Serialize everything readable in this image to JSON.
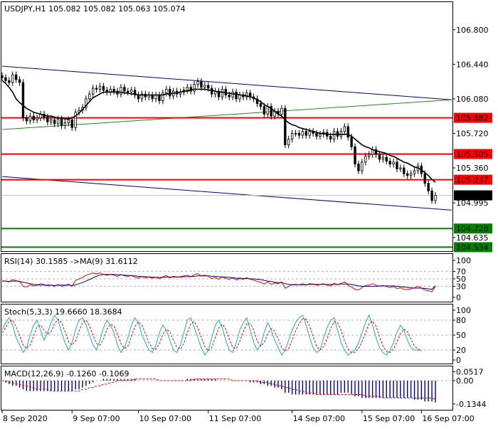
{
  "chart_data": {
    "type": "candlestick",
    "symbol_header": "USDJPY,H1  105.082 105.082 105.063 105.074",
    "price_panel": {
      "ylim": [
        104.5,
        107.08
      ],
      "y_tick_labels": [
        "106.800",
        "106.440",
        "106.080",
        "105.720",
        "105.360",
        "104.995",
        "104.635"
      ],
      "y_tick_values": [
        106.8,
        106.44,
        106.08,
        105.72,
        105.36,
        104.995,
        104.635
      ],
      "horizontal_levels": [
        {
          "label": "105.882",
          "value": 105.882,
          "color": "#ff0000",
          "label_bg": "#ff0000"
        },
        {
          "label": "105.505",
          "value": 105.505,
          "color": "#ff0000",
          "label_bg": "#ff0000"
        },
        {
          "label": "105.237",
          "value": 105.237,
          "color": "#ff0000",
          "label_bg": "#ff0000"
        },
        {
          "label": "104.728",
          "value": 104.728,
          "color": "#008000",
          "label_bg": "#008000"
        },
        {
          "label": "104.534",
          "value": 104.534,
          "color": "#008000",
          "label_bg": "#008000"
        }
      ],
      "current_price": {
        "label": "105.074",
        "value": 105.074,
        "label_bg": "#000000"
      },
      "trendlines": [
        {
          "color": "#00008b",
          "from": [
            0,
            106.42
          ],
          "to": [
            125,
            106.07
          ]
        },
        {
          "color": "#00008b",
          "from": [
            0,
            105.27
          ],
          "to": [
            125,
            104.92
          ]
        },
        {
          "color": "#228b22",
          "from": [
            0,
            105.76
          ],
          "to": [
            125,
            106.07
          ]
        }
      ],
      "close_series": [
        106.3,
        106.27,
        106.25,
        106.33,
        106.28,
        106.25,
        105.88,
        105.85,
        105.9,
        105.86,
        105.88,
        105.92,
        105.89,
        105.84,
        105.86,
        105.82,
        105.87,
        105.8,
        105.83,
        105.86,
        105.78,
        105.94,
        105.96,
        105.99,
        106.08,
        106.13,
        106.19,
        106.18,
        106.21,
        106.17,
        106.15,
        106.18,
        106.16,
        106.13,
        106.2,
        106.16,
        106.15,
        106.17,
        106.12,
        106.08,
        106.13,
        106.1,
        106.12,
        106.08,
        106.12,
        106.06,
        106.14,
        106.18,
        106.11,
        106.16,
        106.13,
        106.15,
        106.17,
        106.2,
        106.16,
        106.23,
        106.26,
        106.2,
        106.22,
        106.19,
        106.13,
        106.16,
        106.1,
        106.18,
        106.12,
        106.1,
        106.15,
        106.08,
        106.12,
        106.1,
        106.14,
        106.1,
        106.08,
        106.03,
        106.0,
        105.92,
        106.0,
        105.9,
        105.95,
        105.92,
        105.98,
        105.6,
        105.66,
        105.72,
        105.72,
        105.7,
        105.74,
        105.7,
        105.74,
        105.72,
        105.69,
        105.71,
        105.73,
        105.69,
        105.66,
        105.74,
        105.69,
        105.74,
        105.79,
        105.68,
        105.58,
        105.4,
        105.33,
        105.42,
        105.48,
        105.5,
        105.55,
        105.5,
        105.45,
        105.47,
        105.43,
        105.4,
        105.42,
        105.35,
        105.36,
        105.3,
        105.28,
        105.3,
        105.33,
        105.38,
        105.3,
        105.2,
        105.12,
        105.02,
        105.074
      ],
      "ma_series": [
        106.27,
        106.24,
        106.2,
        106.15,
        106.08,
        106.04,
        106.01,
        105.98,
        105.96,
        105.94,
        105.93,
        105.92,
        105.91,
        105.9,
        105.9,
        105.89,
        105.88,
        105.88,
        105.87,
        105.87,
        105.88,
        105.9,
        105.93,
        105.97,
        106.01,
        106.05,
        106.09,
        106.11,
        106.13,
        106.15,
        106.15,
        106.15,
        106.15,
        106.15,
        106.15,
        106.14,
        106.14,
        106.13,
        106.13,
        106.12,
        106.12,
        106.12,
        106.12,
        106.12,
        106.12,
        106.12,
        106.12,
        106.13,
        106.13,
        106.14,
        106.14,
        106.15,
        106.16,
        106.16,
        106.17,
        106.18,
        106.18,
        106.18,
        106.18,
        106.17,
        106.17,
        106.16,
        106.15,
        106.15,
        106.14,
        106.14,
        106.13,
        106.13,
        106.12,
        106.12,
        106.11,
        106.1,
        106.09,
        106.07,
        106.05,
        106.02,
        106.0,
        105.98,
        105.95,
        105.92,
        105.9,
        105.86,
        105.83,
        105.81,
        105.8,
        105.78,
        105.77,
        105.76,
        105.75,
        105.74,
        105.73,
        105.72,
        105.72,
        105.71,
        105.71,
        105.71,
        105.71,
        105.71,
        105.71,
        105.71,
        105.69,
        105.66,
        105.63,
        105.6,
        105.58,
        105.57,
        105.55,
        105.54,
        105.53,
        105.52,
        105.51,
        105.49,
        105.48,
        105.46,
        105.44,
        105.42,
        105.41,
        105.39,
        105.37,
        105.36,
        105.34,
        105.31,
        105.28,
        105.24,
        105.21
      ]
    },
    "rsi_panel": {
      "header": "RSI(14) 30.1585  ->MA(9) 31.6112",
      "ylim": [
        0,
        100
      ],
      "y_tick_labels": [
        "100",
        "70",
        "50",
        "30",
        "0"
      ],
      "y_tick_values": [
        100,
        70,
        50,
        30,
        0
      ],
      "rsi_series": [
        45,
        44,
        42,
        48,
        45,
        43,
        30,
        28,
        34,
        31,
        33,
        37,
        35,
        31,
        33,
        30,
        35,
        30,
        32,
        36,
        30,
        46,
        50,
        54,
        60,
        63,
        66,
        64,
        66,
        62,
        60,
        62,
        60,
        57,
        62,
        58,
        57,
        59,
        55,
        52,
        56,
        53,
        55,
        52,
        55,
        50,
        56,
        59,
        53,
        57,
        55,
        56,
        58,
        60,
        56,
        62,
        64,
        58,
        60,
        57,
        51,
        54,
        49,
        56,
        51,
        49,
        53,
        47,
        51,
        49,
        53,
        49,
        47,
        43,
        41,
        36,
        42,
        35,
        39,
        37,
        42,
        25,
        30,
        35,
        35,
        34,
        37,
        34,
        37,
        36,
        33,
        35,
        37,
        33,
        31,
        38,
        34,
        38,
        42,
        33,
        28,
        22,
        20,
        27,
        32,
        33,
        37,
        33,
        30,
        32,
        29,
        27,
        29,
        24,
        26,
        22,
        21,
        23,
        26,
        30,
        25,
        20,
        18,
        15,
        30
      ],
      "ma_series": [
        44,
        44,
        43,
        44,
        44,
        43,
        41,
        39,
        37,
        35,
        34,
        33,
        33,
        33,
        33,
        32,
        33,
        33,
        33,
        33,
        32,
        34,
        37,
        40,
        44,
        48,
        53,
        57,
        60,
        62,
        62,
        62,
        62,
        61,
        61,
        60,
        59,
        59,
        58,
        57,
        56,
        56,
        55,
        55,
        54,
        54,
        54,
        55,
        55,
        55,
        55,
        55,
        56,
        56,
        56,
        57,
        58,
        58,
        58,
        58,
        57,
        57,
        56,
        55,
        55,
        54,
        53,
        52,
        52,
        51,
        51,
        50,
        50,
        49,
        48,
        46,
        44,
        43,
        41,
        40,
        40,
        37,
        35,
        34,
        34,
        34,
        34,
        34,
        35,
        35,
        35,
        35,
        35,
        35,
        35,
        35,
        35,
        36,
        36,
        36,
        35,
        33,
        31,
        30,
        30,
        30,
        30,
        30,
        31,
        31,
        31,
        31,
        31,
        30,
        29,
        28,
        27,
        26,
        25,
        25,
        25,
        24,
        23,
        22,
        31.6
      ]
    },
    "stoch_panel": {
      "header": "Stoch(5,3,3) 19.6660 18.3684",
      "ylim": [
        0,
        100
      ],
      "y_tick_labels": [
        "100",
        "80",
        "50",
        "20",
        "0"
      ],
      "y_tick_values": [
        100,
        80,
        50,
        20,
        0
      ],
      "k_series": [
        60,
        75,
        85,
        70,
        45,
        30,
        15,
        25,
        50,
        70,
        80,
        60,
        40,
        55,
        75,
        90,
        80,
        55,
        35,
        20,
        35,
        60,
        80,
        85,
        70,
        50,
        30,
        20,
        40,
        65,
        80,
        70,
        55,
        30,
        15,
        25,
        45,
        70,
        85,
        75,
        50,
        35,
        20,
        15,
        30,
        55,
        70,
        60,
        40,
        20,
        15,
        30,
        55,
        80,
        85,
        65,
        45,
        25,
        10,
        20,
        45,
        70,
        80,
        65,
        40,
        20,
        15,
        35,
        60,
        75,
        85,
        60,
        35,
        20,
        30,
        55,
        75,
        60,
        40,
        25,
        10,
        20,
        40,
        60,
        75,
        85,
        90,
        70,
        45,
        25,
        15,
        20,
        45,
        65,
        80,
        85,
        60,
        35,
        20,
        10,
        15,
        20,
        35,
        55,
        75,
        90,
        70,
        45,
        25,
        15,
        10,
        20,
        35,
        55,
        70,
        60,
        40,
        25,
        20,
        20,
        19.7
      ],
      "d_series": [
        55,
        65,
        78,
        80,
        67,
        48,
        30,
        23,
        30,
        48,
        67,
        70,
        60,
        52,
        57,
        73,
        82,
        75,
        57,
        37,
        30,
        38,
        58,
        75,
        80,
        68,
        50,
        33,
        30,
        42,
        62,
        72,
        68,
        52,
        33,
        23,
        28,
        47,
        67,
        77,
        70,
        53,
        35,
        23,
        22,
        33,
        52,
        62,
        57,
        40,
        25,
        22,
        33,
        55,
        73,
        77,
        65,
        45,
        27,
        18,
        25,
        45,
        65,
        72,
        62,
        42,
        25,
        23,
        37,
        57,
        73,
        73,
        60,
        38,
        28,
        35,
        53,
        63,
        58,
        42,
        25,
        18,
        23,
        40,
        58,
        73,
        83,
        82,
        68,
        47,
        28,
        20,
        27,
        43,
        63,
        77,
        75,
        60,
        38,
        22,
        15,
        15,
        23,
        37,
        55,
        73,
        78,
        68,
        47,
        28,
        17,
        15,
        22,
        37,
        53,
        62,
        57,
        42,
        28,
        22,
        18.4
      ]
    },
    "macd_panel": {
      "header": "MACD(12,26,9) -0.1260 -0.1069",
      "ylim": [
        -0.16,
        0.07
      ],
      "y_tick_labels": [
        "0.0517",
        "0.00",
        "-0.1344"
      ],
      "y_tick_values": [
        0.0517,
        0.0,
        -0.1344
      ],
      "histogram": [
        0.0,
        -0.01,
        -0.02,
        -0.03,
        -0.03,
        -0.04,
        -0.05,
        -0.06,
        -0.06,
        -0.06,
        -0.06,
        -0.06,
        -0.06,
        -0.06,
        -0.06,
        -0.06,
        -0.06,
        -0.06,
        -0.06,
        -0.06,
        -0.06,
        -0.05,
        -0.05,
        -0.04,
        -0.03,
        -0.02,
        -0.01,
        0.0,
        0.0,
        0.01,
        0.01,
        0.01,
        0.01,
        0.01,
        0.01,
        0.01,
        0.01,
        0.01,
        0.01,
        0.0,
        0.0,
        0.0,
        0.0,
        0.0,
        0.0,
        0.0,
        0.0,
        0.0,
        0.0,
        0.0,
        0.0,
        0.0,
        0.0,
        0.01,
        0.01,
        0.01,
        0.01,
        0.01,
        0.01,
        0.01,
        0.01,
        0.01,
        0.0,
        0.0,
        0.0,
        0.0,
        0.0,
        0.0,
        0.0,
        0.0,
        0.0,
        -0.01,
        -0.01,
        -0.01,
        -0.02,
        -0.02,
        -0.03,
        -0.03,
        -0.04,
        -0.04,
        -0.05,
        -0.07,
        -0.07,
        -0.08,
        -0.08,
        -0.08,
        -0.08,
        -0.08,
        -0.08,
        -0.08,
        -0.08,
        -0.08,
        -0.08,
        -0.08,
        -0.08,
        -0.08,
        -0.08,
        -0.07,
        -0.07,
        -0.07,
        -0.08,
        -0.09,
        -0.09,
        -0.1,
        -0.1,
        -0.1,
        -0.1,
        -0.1,
        -0.1,
        -0.1,
        -0.1,
        -0.1,
        -0.1,
        -0.1,
        -0.1,
        -0.1,
        -0.1,
        -0.1,
        -0.11,
        -0.11,
        -0.11,
        -0.12,
        -0.12,
        -0.12,
        -0.126
      ],
      "signal": [
        0.0,
        0.0,
        -0.01,
        -0.01,
        -0.02,
        -0.02,
        -0.03,
        -0.03,
        -0.04,
        -0.04,
        -0.05,
        -0.05,
        -0.05,
        -0.05,
        -0.06,
        -0.06,
        -0.06,
        -0.06,
        -0.06,
        -0.06,
        -0.06,
        -0.06,
        -0.06,
        -0.05,
        -0.05,
        -0.04,
        -0.04,
        -0.03,
        -0.03,
        -0.02,
        -0.02,
        -0.01,
        -0.01,
        0.0,
        0.0,
        0.0,
        0.0,
        0.0,
        0.01,
        0.01,
        0.01,
        0.01,
        0.01,
        0.01,
        0.01,
        0.0,
        0.0,
        0.0,
        0.0,
        0.0,
        0.0,
        0.0,
        0.0,
        0.0,
        0.0,
        0.01,
        0.01,
        0.01,
        0.01,
        0.01,
        0.01,
        0.01,
        0.01,
        0.01,
        0.01,
        0.01,
        0.0,
        0.0,
        0.0,
        0.0,
        0.0,
        0.0,
        0.0,
        0.0,
        -0.01,
        -0.01,
        -0.01,
        -0.02,
        -0.02,
        -0.03,
        -0.03,
        -0.04,
        -0.04,
        -0.05,
        -0.05,
        -0.06,
        -0.06,
        -0.07,
        -0.07,
        -0.07,
        -0.08,
        -0.08,
        -0.08,
        -0.08,
        -0.08,
        -0.08,
        -0.08,
        -0.08,
        -0.08,
        -0.08,
        -0.08,
        -0.08,
        -0.08,
        -0.08,
        -0.09,
        -0.09,
        -0.09,
        -0.09,
        -0.09,
        -0.1,
        -0.1,
        -0.1,
        -0.1,
        -0.1,
        -0.1,
        -0.1,
        -0.1,
        -0.1,
        -0.1,
        -0.1,
        -0.1,
        -0.1,
        -0.1,
        -0.1,
        -0.1069
      ]
    },
    "x_tick_labels": [
      "8 Sep 2020",
      "9 Sep 07:00",
      "10 Sep 07:00",
      "11 Sep 07:00",
      "14 Sep 07:00",
      "15 Sep 07:00",
      "16 Sep 07:00"
    ],
    "x_tick_bar_index": [
      0,
      20,
      39,
      59,
      83,
      103,
      120
    ]
  },
  "colors": {
    "bull_candle": "#ffffff",
    "bear_candle": "#000000",
    "ma_line": "#000000",
    "rsi_line": "#ff0000",
    "rsi_ma_line": "#00008b",
    "stoch_k": "#20b2aa",
    "stoch_d": "#ff0000",
    "macd_hist": "#00008b",
    "macd_signal": "#ff0000",
    "level_text": "#ffffff"
  }
}
